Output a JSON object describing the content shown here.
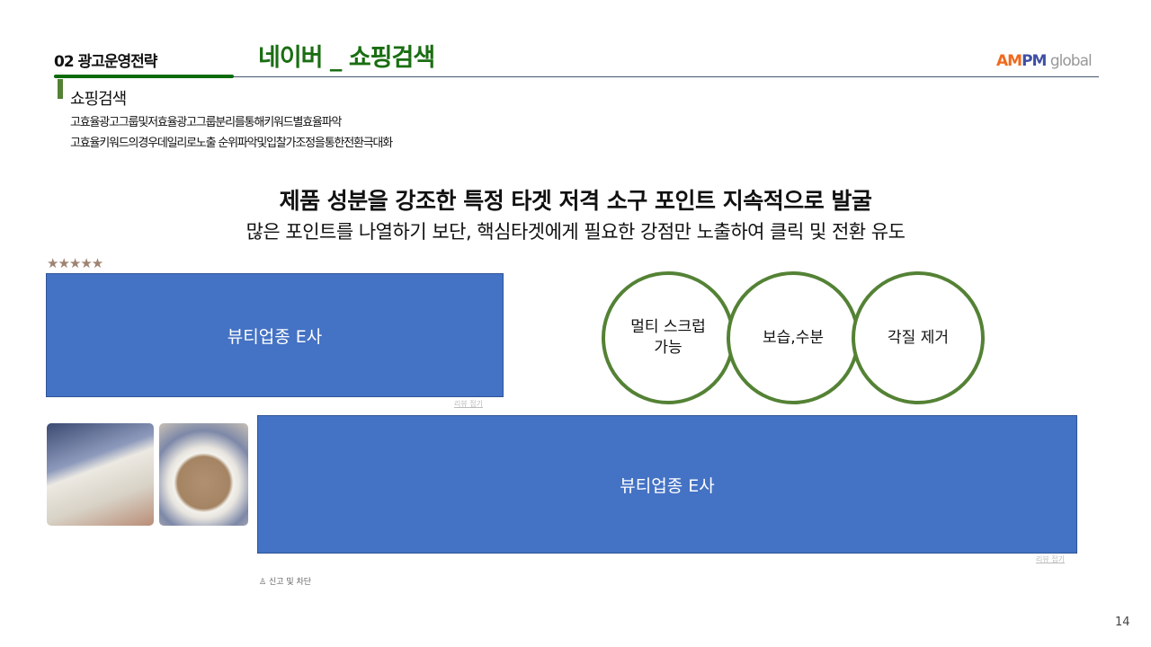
{
  "header": {
    "section": "02 광고운영전략",
    "title": "네이버 _ 쇼핑검색",
    "logo": {
      "part1": "AM",
      "part2": "PM",
      "part3": " global"
    }
  },
  "subtitle": "쇼핑검색",
  "descriptions": [
    "고효율광고그룹및저효율광고그룹분리를통해키워드별효율파악",
    "고효율키워드의경우데일리로노출 순위파악및입찰가조정을통한전환극대화"
  ],
  "headline": "제품 성분을 강조한 특정 타겟 저격 소구 포인트 지속적으로 발굴",
  "subheadline": "많은 포인트를 나열하기 보단, 핵심타겟에게 필요한 강점만 노출하여 클릭 및 전환 유도",
  "review": {
    "stars": "★★★★★",
    "rating": 5,
    "box1": "뷰티업종 E사",
    "box2": "뷰티업종 E사",
    "fold": "리뷰 접기",
    "report": "신고 및 차단"
  },
  "circles": [
    "멀티 스크럽\n가능",
    "보습,수분",
    "각질 제거"
  ],
  "page_number": "14"
}
